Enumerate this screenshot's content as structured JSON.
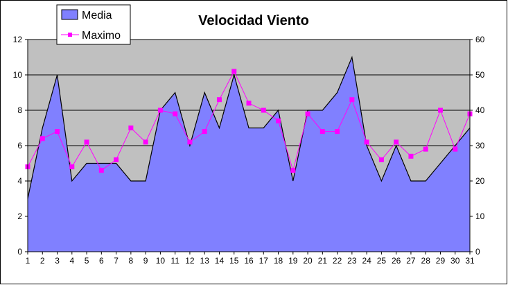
{
  "chart_data": {
    "type": "area",
    "title": "Velocidad Viento",
    "categories": [
      "1",
      "2",
      "3",
      "4",
      "5",
      "6",
      "7",
      "8",
      "9",
      "10",
      "11",
      "12",
      "13",
      "14",
      "15",
      "16",
      "17",
      "18",
      "19",
      "20",
      "21",
      "22",
      "23",
      "24",
      "25",
      "26",
      "27",
      "28",
      "29",
      "30",
      "31"
    ],
    "series": [
      {
        "name": "Media",
        "type": "area",
        "axis": "left",
        "color": "#8080ff",
        "values": [
          3,
          7,
          10,
          4,
          5,
          5,
          5,
          4,
          4,
          8,
          9,
          6,
          9,
          7,
          10,
          7,
          7,
          8,
          4,
          8,
          8,
          9,
          11,
          6,
          4,
          6,
          4,
          4,
          5,
          6,
          7
        ]
      },
      {
        "name": "Maximo",
        "type": "line",
        "axis": "right",
        "color": "#ff00ff",
        "values": [
          24,
          32,
          34,
          24,
          31,
          23,
          26,
          35,
          31,
          40,
          39,
          31,
          34,
          43,
          51,
          42,
          40,
          37,
          23,
          39,
          34,
          34,
          43,
          31,
          26,
          31,
          27,
          29,
          40,
          29,
          39
        ]
      }
    ],
    "y_left": {
      "min": 0,
      "max": 12,
      "step": 2,
      "ticks": [
        "0",
        "2",
        "4",
        "6",
        "8",
        "10",
        "12"
      ]
    },
    "y_right": {
      "min": 0,
      "max": 60,
      "step": 10,
      "ticks": [
        "0",
        "10",
        "20",
        "30",
        "40",
        "50",
        "60"
      ]
    },
    "plot_background": "#c0c0c0",
    "gridlines": true,
    "legend_position": "top-left"
  }
}
